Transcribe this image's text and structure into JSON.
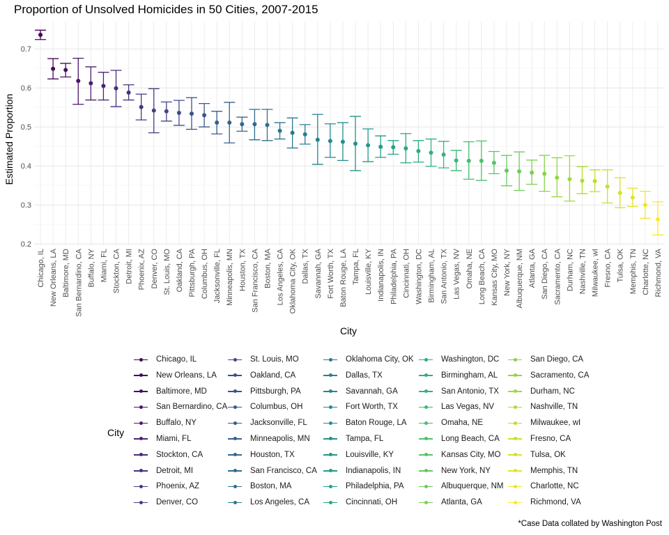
{
  "title": "Proportion of Unsolved Homicides in 50 Cities, 2007-2015",
  "caption": "*Case Data collated by Washington Post",
  "legend_title": "City",
  "chart_data": {
    "type": "scatter",
    "subtype": "point-with-error-bars",
    "title": "Proportion of Unsolved Homicides in 50 Cities, 2007-2015",
    "xlabel": "City",
    "ylabel": "Estimated Proportion",
    "ylim": [
      0.195,
      0.77
    ],
    "yticks": [
      0.2,
      0.3,
      0.4,
      0.5,
      0.6,
      0.7
    ],
    "grid": true,
    "legend_position": "bottom",
    "categories": [
      "Chicago, IL",
      "New Orleans, LA",
      "Baltimore, MD",
      "San Bernardino, CA",
      "Buffalo, NY",
      "Miami, FL",
      "Stockton, CA",
      "Detroit, MI",
      "Phoenix, AZ",
      "Denver, CO",
      "St. Louis, MO",
      "Oakland, CA",
      "Pittsburgh, PA",
      "Columbus, OH",
      "Jacksonville, FL",
      "Minneapolis, MN",
      "Houston, TX",
      "San Francisco, CA",
      "Boston, MA",
      "Los Angeles, CA",
      "Oklahoma City, OK",
      "Dallas, TX",
      "Savannah, GA",
      "Fort Worth, TX",
      "Baton Rouge, LA",
      "Tampa, FL",
      "Louisville, KY",
      "Indianapolis, IN",
      "Philadelphia, PA",
      "Cincinnati, OH",
      "Washington, DC",
      "Birmingham, AL",
      "San Antonio, TX",
      "Las Vegas, NV",
      "Omaha, NE",
      "Long Beach, CA",
      "Kansas City, MO",
      "New York, NY",
      "Albuquerque, NM",
      "Atlanta, GA",
      "San Diego, CA",
      "Sacramento, CA",
      "Durham, NC",
      "Nashville, TN",
      "Milwaukee, wI",
      "Fresno, CA",
      "Tulsa, OK",
      "Memphis, TN",
      "Charlotte, NC",
      "Richmond, VA"
    ],
    "estimate": [
      0.736,
      0.649,
      0.646,
      0.618,
      0.612,
      0.605,
      0.599,
      0.588,
      0.551,
      0.542,
      0.54,
      0.536,
      0.534,
      0.53,
      0.511,
      0.511,
      0.507,
      0.507,
      0.505,
      0.49,
      0.485,
      0.481,
      0.467,
      0.464,
      0.462,
      0.457,
      0.453,
      0.449,
      0.448,
      0.445,
      0.438,
      0.434,
      0.429,
      0.414,
      0.413,
      0.413,
      0.408,
      0.388,
      0.386,
      0.383,
      0.38,
      0.37,
      0.366,
      0.362,
      0.361,
      0.347,
      0.331,
      0.319,
      0.3,
      0.263
    ],
    "ci_low": [
      0.724,
      0.623,
      0.628,
      0.558,
      0.569,
      0.569,
      0.552,
      0.569,
      0.518,
      0.485,
      0.515,
      0.504,
      0.494,
      0.5,
      0.482,
      0.459,
      0.489,
      0.467,
      0.465,
      0.469,
      0.446,
      0.456,
      0.404,
      0.422,
      0.414,
      0.388,
      0.411,
      0.422,
      0.43,
      0.408,
      0.41,
      0.399,
      0.395,
      0.388,
      0.366,
      0.363,
      0.38,
      0.349,
      0.337,
      0.353,
      0.335,
      0.321,
      0.31,
      0.329,
      0.334,
      0.305,
      0.293,
      0.296,
      0.266,
      0.223
    ],
    "ci_high": [
      0.748,
      0.675,
      0.663,
      0.676,
      0.654,
      0.64,
      0.645,
      0.608,
      0.584,
      0.598,
      0.564,
      0.568,
      0.575,
      0.56,
      0.54,
      0.563,
      0.525,
      0.545,
      0.545,
      0.511,
      0.523,
      0.506,
      0.532,
      0.508,
      0.511,
      0.527,
      0.495,
      0.477,
      0.465,
      0.483,
      0.465,
      0.469,
      0.463,
      0.44,
      0.462,
      0.464,
      0.437,
      0.427,
      0.436,
      0.415,
      0.427,
      0.421,
      0.426,
      0.398,
      0.39,
      0.39,
      0.37,
      0.343,
      0.335,
      0.308
    ]
  }
}
